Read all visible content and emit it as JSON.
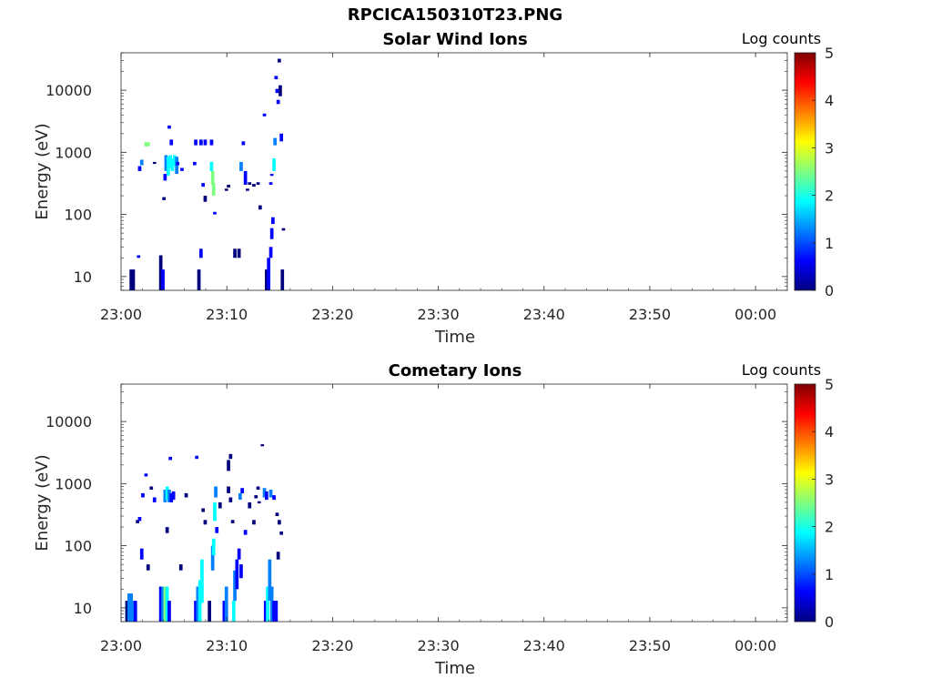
{
  "figure": {
    "title": "RPCICA150310T23.PNG"
  },
  "colorbar_colors": [
    "#00007f",
    "#0000ff",
    "#007fff",
    "#00ffff",
    "#7fff7f",
    "#ffff00",
    "#ff7f00",
    "#ff0000",
    "#7f0000"
  ],
  "chart_data": [
    {
      "type": "heatmap",
      "title": "Solar Wind Ions",
      "xlabel": "Time",
      "ylabel": "Energy (eV)",
      "x_range_min": [
        0,
        63
      ],
      "xticks": [
        0,
        10,
        20,
        30,
        40,
        50,
        60
      ],
      "xtick_labels": [
        "23:00",
        "23:10",
        "23:20",
        "23:30",
        "23:40",
        "23:50",
        "00:00"
      ],
      "y_scale": "log",
      "ylim": [
        6,
        40000
      ],
      "yticks": [
        10,
        100,
        1000,
        10000
      ],
      "ytick_labels": [
        "10",
        "100",
        "1000",
        "10000"
      ],
      "colorbar": {
        "label": "Log counts",
        "range": [
          0,
          5
        ],
        "ticks": [
          "0",
          "1",
          "2",
          "3",
          "4",
          "5"
        ]
      },
      "cells": [
        [
          0.8,
          6,
          13,
          0.2
        ],
        [
          1.0,
          6,
          13,
          0.3
        ],
        [
          1.5,
          20,
          22,
          0.4
        ],
        [
          1.6,
          500,
          600,
          0.5
        ],
        [
          1.8,
          620,
          760,
          1.0
        ],
        [
          2.2,
          1250,
          1450,
          2.3
        ],
        [
          2.4,
          1250,
          1450,
          2.6
        ],
        [
          3.0,
          650,
          700,
          0.3
        ],
        [
          3.6,
          6,
          22,
          0.2
        ],
        [
          3.8,
          6,
          13,
          0.4
        ],
        [
          3.9,
          170,
          190,
          0.3
        ],
        [
          4.0,
          350,
          450,
          0.6
        ],
        [
          4.1,
          500,
          900,
          1.4
        ],
        [
          4.3,
          420,
          850,
          1.6
        ],
        [
          4.5,
          550,
          900,
          2.0
        ],
        [
          4.7,
          500,
          800,
          1.8
        ],
        [
          4.9,
          600,
          900,
          1.9
        ],
        [
          5.1,
          450,
          850,
          1.5
        ],
        [
          4.4,
          2400,
          2700,
          0.6
        ],
        [
          4.6,
          1300,
          1600,
          0.8
        ],
        [
          5.2,
          620,
          700,
          0.6
        ],
        [
          5.6,
          500,
          560,
          0.4
        ],
        [
          6.8,
          620,
          700,
          0.4
        ],
        [
          6.9,
          1300,
          1600,
          0.5
        ],
        [
          7.4,
          1300,
          1600,
          0.7
        ],
        [
          7.8,
          1300,
          1600,
          0.9
        ],
        [
          8.4,
          1300,
          1600,
          0.7
        ],
        [
          7.2,
          6,
          13,
          0.3
        ],
        [
          7.4,
          20,
          28,
          0.5
        ],
        [
          7.6,
          280,
          320,
          0.4
        ],
        [
          7.8,
          160,
          200,
          0.3
        ],
        [
          8.4,
          500,
          700,
          1.6
        ],
        [
          8.5,
          300,
          500,
          2.4
        ],
        [
          8.6,
          200,
          320,
          2.8
        ],
        [
          8.7,
          100,
          110,
          0.4
        ],
        [
          9.8,
          240,
          260,
          0.3
        ],
        [
          10.0,
          270,
          300,
          0.3
        ],
        [
          10.6,
          20,
          28,
          0.3
        ],
        [
          11.0,
          20,
          28,
          0.3
        ],
        [
          11.2,
          500,
          700,
          1.4
        ],
        [
          11.4,
          1300,
          1500,
          0.6
        ],
        [
          11.6,
          300,
          500,
          0.5
        ],
        [
          11.8,
          240,
          260,
          0.3
        ],
        [
          12.0,
          300,
          330,
          0.3
        ],
        [
          12.4,
          280,
          310,
          0.3
        ],
        [
          12.8,
          300,
          330,
          0.3
        ],
        [
          13.0,
          120,
          140,
          0.3
        ],
        [
          13.4,
          3800,
          4200,
          0.5
        ],
        [
          13.6,
          6,
          13,
          0.3
        ],
        [
          13.8,
          6,
          20,
          0.5
        ],
        [
          14.0,
          20,
          30,
          0.6
        ],
        [
          14.1,
          40,
          60,
          0.8
        ],
        [
          14.2,
          70,
          90,
          0.4
        ],
        [
          14.0,
          300,
          330,
          0.4
        ],
        [
          14.1,
          420,
          450,
          0.6
        ],
        [
          14.3,
          500,
          800,
          1.6
        ],
        [
          14.4,
          1300,
          1700,
          1.2
        ],
        [
          14.5,
          15000,
          17000,
          0.4
        ],
        [
          14.6,
          9000,
          10500,
          0.4
        ],
        [
          14.7,
          6000,
          7000,
          0.4
        ],
        [
          14.8,
          28000,
          32000,
          0.3
        ],
        [
          14.9,
          8000,
          12000,
          0.3
        ],
        [
          15.0,
          1500,
          2000,
          0.5
        ],
        [
          15.1,
          6,
          13,
          0.3
        ],
        [
          15.2,
          55,
          60,
          0.3
        ]
      ]
    },
    {
      "type": "heatmap",
      "title": "Cometary Ions",
      "xlabel": "Time",
      "ylabel": "Energy (eV)",
      "x_range_min": [
        0,
        63
      ],
      "xticks": [
        0,
        10,
        20,
        30,
        40,
        50,
        60
      ],
      "xtick_labels": [
        "23:00",
        "23:10",
        "23:20",
        "23:30",
        "23:40",
        "23:50",
        "00:00"
      ],
      "y_scale": "log",
      "ylim": [
        6,
        40000
      ],
      "yticks": [
        10,
        100,
        1000,
        10000
      ],
      "ytick_labels": [
        "10",
        "100",
        "1000",
        "10000"
      ],
      "colorbar": {
        "label": "Log counts",
        "range": [
          0,
          5
        ],
        "ticks": [
          "0",
          "1",
          "2",
          "3",
          "4",
          "5"
        ]
      },
      "cells": [
        [
          0.4,
          6,
          13,
          0.3
        ],
        [
          0.6,
          6,
          17,
          1.2
        ],
        [
          0.8,
          6,
          17,
          1.5
        ],
        [
          1.0,
          6,
          13,
          1.1
        ],
        [
          1.2,
          6,
          13,
          0.4
        ],
        [
          1.4,
          230,
          260,
          0.3
        ],
        [
          1.6,
          250,
          290,
          0.4
        ],
        [
          1.8,
          60,
          90,
          0.6
        ],
        [
          1.9,
          600,
          700,
          0.4
        ],
        [
          2.2,
          1300,
          1450,
          0.5
        ],
        [
          2.4,
          40,
          50,
          0.3
        ],
        [
          2.7,
          800,
          900,
          0.3
        ],
        [
          3.0,
          500,
          600,
          0.4
        ],
        [
          3.6,
          6,
          22,
          0.5
        ],
        [
          3.8,
          6,
          22,
          1.2
        ],
        [
          4.0,
          6,
          22,
          2.3
        ],
        [
          4.2,
          6,
          22,
          1.6
        ],
        [
          4.4,
          6,
          13,
          0.5
        ],
        [
          4.2,
          160,
          200,
          0.3
        ],
        [
          4.0,
          500,
          800,
          1.2
        ],
        [
          4.2,
          550,
          900,
          1.8
        ],
        [
          4.4,
          500,
          800,
          1.4
        ],
        [
          4.6,
          500,
          700,
          0.9
        ],
        [
          4.8,
          550,
          750,
          0.6
        ],
        [
          4.5,
          2400,
          2700,
          0.4
        ],
        [
          5.5,
          40,
          50,
          0.3
        ],
        [
          6.0,
          600,
          700,
          0.3
        ],
        [
          6.9,
          6,
          13,
          0.5
        ],
        [
          7.1,
          6,
          22,
          1.4
        ],
        [
          7.3,
          6,
          28,
          1.9
        ],
        [
          7.5,
          12,
          60,
          1.6
        ],
        [
          7.6,
          350,
          400,
          0.3
        ],
        [
          7.8,
          220,
          260,
          0.3
        ],
        [
          7.0,
          2500,
          2800,
          0.5
        ],
        [
          8.2,
          6,
          13,
          0.3
        ],
        [
          8.5,
          40,
          100,
          1.4
        ],
        [
          8.6,
          70,
          130,
          2.1
        ],
        [
          8.7,
          250,
          500,
          1.8
        ],
        [
          8.8,
          600,
          900,
          1.2
        ],
        [
          8.9,
          160,
          200,
          0.5
        ],
        [
          9.2,
          400,
          500,
          0.3
        ],
        [
          9.6,
          6,
          13,
          0.5
        ],
        [
          9.8,
          6,
          22,
          1.2
        ],
        [
          10.0,
          1600,
          2400,
          0.3
        ],
        [
          10.2,
          2500,
          3000,
          0.3
        ],
        [
          10.0,
          700,
          900,
          0.3
        ],
        [
          10.2,
          500,
          600,
          0.3
        ],
        [
          10.4,
          230,
          260,
          0.3
        ],
        [
          10.5,
          6,
          13,
          1.6
        ],
        [
          10.6,
          13,
          40,
          1.3
        ],
        [
          10.8,
          20,
          60,
          0.9
        ],
        [
          11.0,
          60,
          90,
          0.5
        ],
        [
          11.2,
          30,
          50,
          0.4
        ],
        [
          11.1,
          550,
          700,
          1.1
        ],
        [
          11.3,
          700,
          850,
          0.9
        ],
        [
          11.6,
          150,
          180,
          0.4
        ],
        [
          12.0,
          400,
          500,
          0.3
        ],
        [
          12.4,
          220,
          260,
          0.3
        ],
        [
          12.6,
          580,
          650,
          0.3
        ],
        [
          12.8,
          800,
          900,
          0.3
        ],
        [
          12.9,
          480,
          520,
          0.3
        ],
        [
          13.5,
          6,
          13,
          0.4
        ],
        [
          13.7,
          6,
          22,
          1.6
        ],
        [
          13.9,
          13,
          60,
          1.2
        ],
        [
          14.1,
          6,
          22,
          1.4
        ],
        [
          14.3,
          6,
          13,
          0.5
        ],
        [
          14.5,
          6,
          13,
          0.4
        ],
        [
          13.2,
          4000,
          4300,
          0.3
        ],
        [
          13.4,
          600,
          850,
          1.0
        ],
        [
          13.6,
          550,
          750,
          0.6
        ],
        [
          14.0,
          600,
          800,
          1.5
        ],
        [
          14.3,
          550,
          650,
          0.7
        ],
        [
          14.6,
          300,
          340,
          0.3
        ],
        [
          14.8,
          220,
          260,
          0.3
        ],
        [
          15.0,
          150,
          170,
          0.3
        ],
        [
          14.7,
          60,
          80,
          0.3
        ]
      ]
    }
  ]
}
